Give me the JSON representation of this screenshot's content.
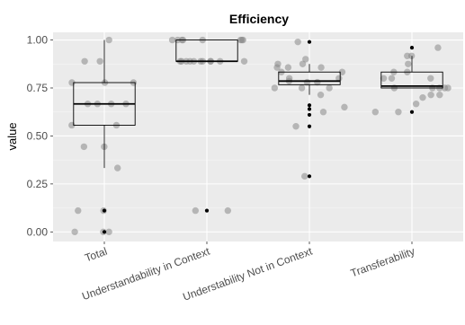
{
  "chart_data": {
    "type": "box",
    "title": "Efficiency",
    "xlabel": "",
    "ylabel": "value",
    "ylim": [
      -0.05,
      1.04
    ],
    "yticks": [
      0.0,
      0.25,
      0.5,
      0.75,
      1.0
    ],
    "ytick_labels": [
      "0.00",
      "0.25",
      "0.50",
      "0.75",
      "1.00"
    ],
    "grid": true,
    "colors": {
      "panel": "#ebebeb",
      "grid_major": "#ffffff",
      "grid_minor": "#f5f5f5",
      "box_stroke": "#000000",
      "point": "#888888",
      "outlier": "#000000",
      "title": "#000000",
      "tick_label": "#4d4d4d"
    },
    "categories": [
      "Total",
      "Understandability in Context",
      "Understability Not in Context",
      "Transferability"
    ],
    "boxes": [
      {
        "category": "Total",
        "whisker_low": 0.333,
        "q1": 0.556,
        "median": 0.667,
        "q3": 0.778,
        "whisker_high": 1.0,
        "outliers": [
          0.111,
          0.0
        ]
      },
      {
        "category": "Understandability in Context",
        "whisker_low": 0.889,
        "q1": 0.889,
        "median": 0.889,
        "q3": 1.0,
        "whisker_high": 1.0,
        "outliers": [
          0.111
        ]
      },
      {
        "category": "Understability Not in Context",
        "whisker_low": 0.714,
        "q1": 0.767,
        "median": 0.786,
        "q3": 0.833,
        "whisker_high": 0.875,
        "outliers": [
          0.99,
          0.66,
          0.64,
          0.61,
          0.55,
          0.29
        ]
      },
      {
        "category": "Transferability",
        "whisker_low": 0.75,
        "q1": 0.75,
        "median": 0.76,
        "q3": 0.833,
        "whisker_high": 0.917,
        "outliers": [
          0.96,
          0.625
        ]
      }
    ],
    "points": [
      [
        0.111,
        1.0,
        0.0,
        0.889,
        0.889,
        0.778,
        0.778,
        0.778,
        0.667,
        0.667,
        0.667,
        0.667,
        0.556,
        0.556,
        0.444,
        0.444,
        0.333,
        0.111,
        0.0,
        0.0
      ],
      [
        1.0,
        1.0,
        1.0,
        1.0,
        1.0,
        1.0,
        1.0,
        1.0,
        0.889,
        0.889,
        0.889,
        0.889,
        0.889,
        0.889,
        0.889,
        0.889,
        0.889,
        0.889,
        0.889,
        0.111,
        0.111
      ],
      [
        0.99,
        0.857,
        0.833,
        0.8,
        0.8,
        0.78,
        0.786,
        0.78,
        0.75,
        0.75,
        0.857,
        0.833,
        0.857,
        0.9,
        0.875,
        0.75,
        0.875,
        0.625,
        0.714,
        0.65,
        0.55,
        0.29
      ],
      [
        0.917,
        0.917,
        0.96,
        0.875,
        0.833,
        0.833,
        0.8,
        0.8,
        0.8,
        0.75,
        0.75,
        0.75,
        0.75,
        0.75,
        0.714,
        0.714,
        0.7,
        0.667,
        0.625,
        0.625
      ]
    ]
  }
}
